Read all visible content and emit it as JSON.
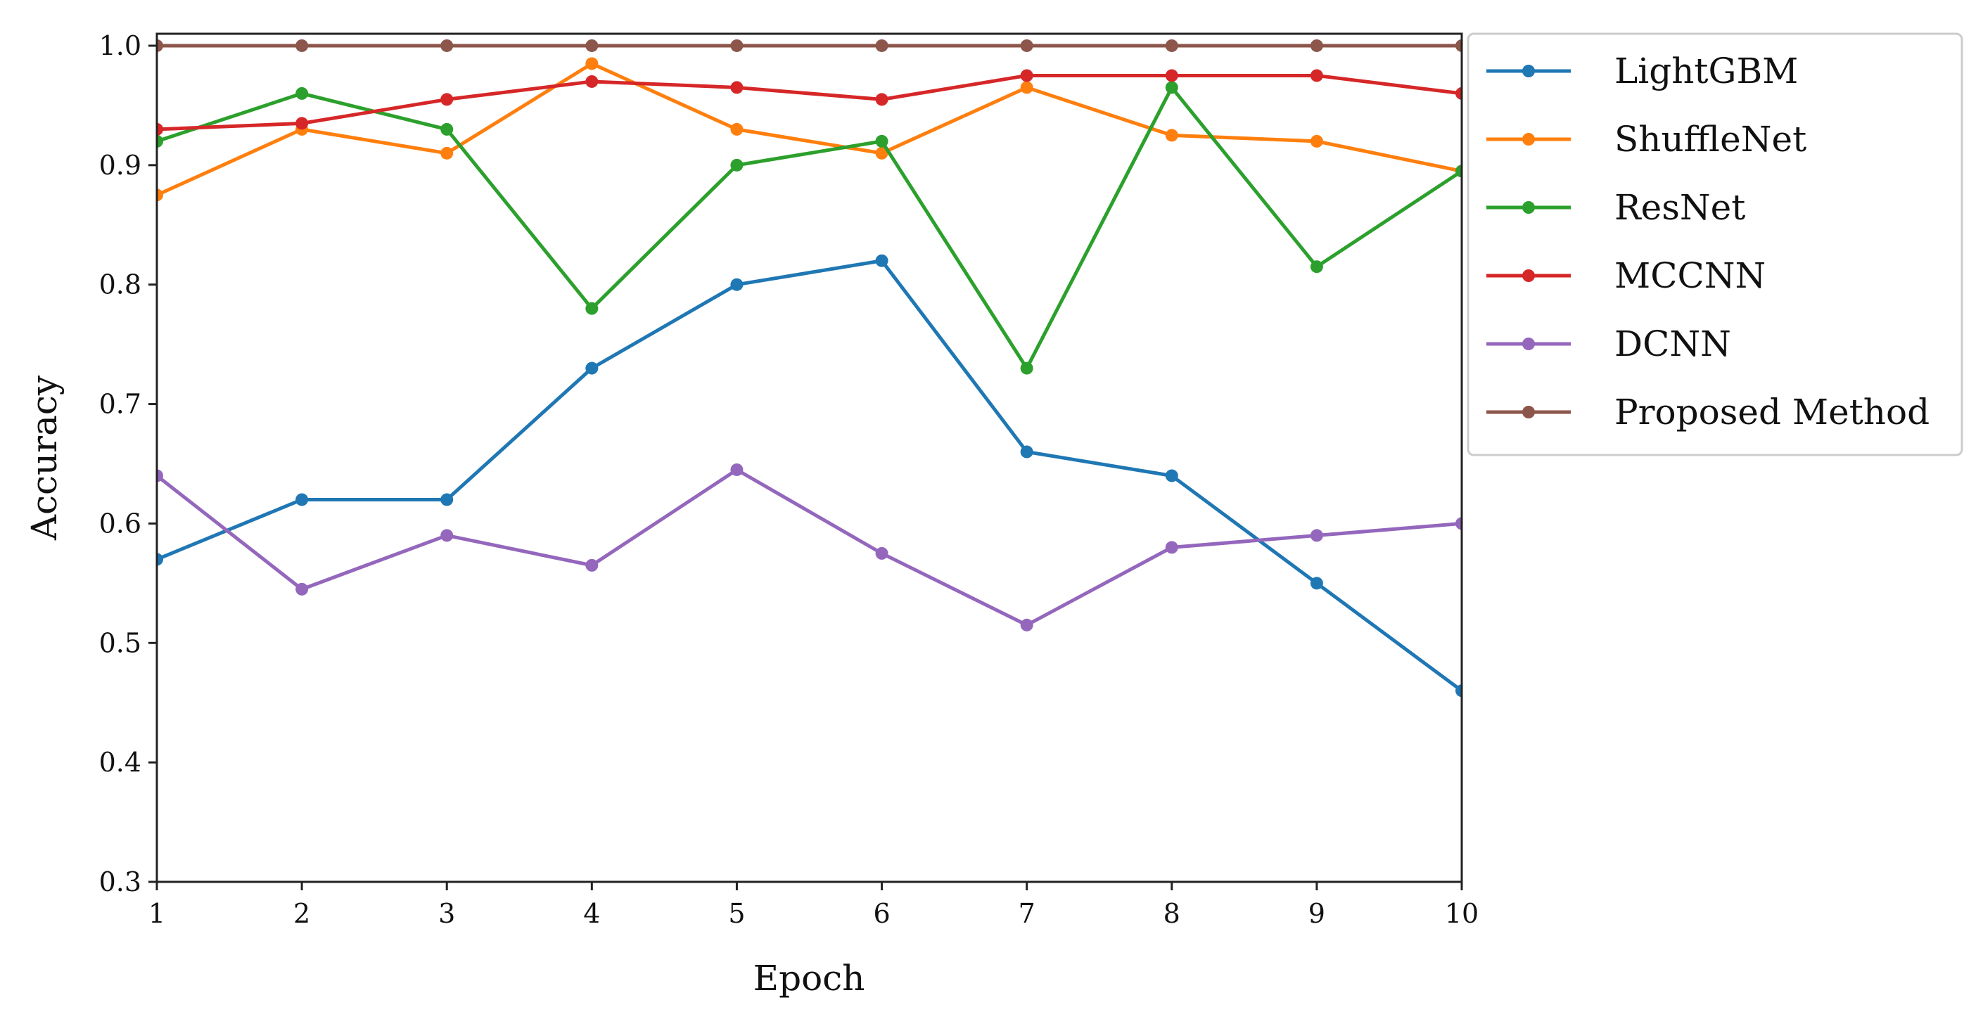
{
  "chart_data": {
    "type": "line",
    "title": "",
    "xlabel": "Epoch",
    "ylabel": "Accuracy",
    "x": [
      1,
      2,
      3,
      4,
      5,
      6,
      7,
      8,
      9,
      10
    ],
    "xlim": [
      1,
      10
    ],
    "ylim": [
      0.3,
      1.01
    ],
    "xticks": [
      1,
      2,
      3,
      4,
      5,
      6,
      7,
      8,
      9,
      10
    ],
    "xtick_labels": [
      "1",
      "2",
      "3",
      "4",
      "5",
      "6",
      "7",
      "8",
      "9",
      "10"
    ],
    "yticks": [
      0.3,
      0.4,
      0.5,
      0.6,
      0.7,
      0.8,
      0.9,
      1.0
    ],
    "ytick_labels": [
      "0.3",
      "0.4",
      "0.5",
      "0.6",
      "0.7",
      "0.8",
      "0.9",
      "1.0"
    ],
    "grid": false,
    "legend_position": "outside-top-right",
    "series": [
      {
        "name": "LightGBM",
        "color": "#1f77b4",
        "values": [
          0.57,
          0.62,
          0.62,
          0.73,
          0.8,
          0.82,
          0.66,
          0.64,
          0.55,
          0.46
        ]
      },
      {
        "name": "ShuffleNet",
        "color": "#ff7f0e",
        "values": [
          0.875,
          0.93,
          0.91,
          0.985,
          0.93,
          0.91,
          0.965,
          0.925,
          0.92,
          0.895
        ]
      },
      {
        "name": "ResNet",
        "color": "#2ca02c",
        "values": [
          0.92,
          0.96,
          0.93,
          0.78,
          0.9,
          0.92,
          0.73,
          0.965,
          0.815,
          0.895
        ]
      },
      {
        "name": "MCCNN",
        "color": "#d62728",
        "values": [
          0.93,
          0.935,
          0.955,
          0.97,
          0.965,
          0.955,
          0.975,
          0.975,
          0.975,
          0.96
        ]
      },
      {
        "name": "DCNN",
        "color": "#9467bd",
        "values": [
          0.64,
          0.545,
          0.59,
          0.565,
          0.645,
          0.575,
          0.515,
          0.58,
          0.59,
          0.6
        ]
      },
      {
        "name": "Proposed Method",
        "color": "#8c564b",
        "values": [
          1.0,
          1.0,
          1.0,
          1.0,
          1.0,
          1.0,
          1.0,
          1.0,
          1.0,
          1.0
        ]
      }
    ]
  }
}
